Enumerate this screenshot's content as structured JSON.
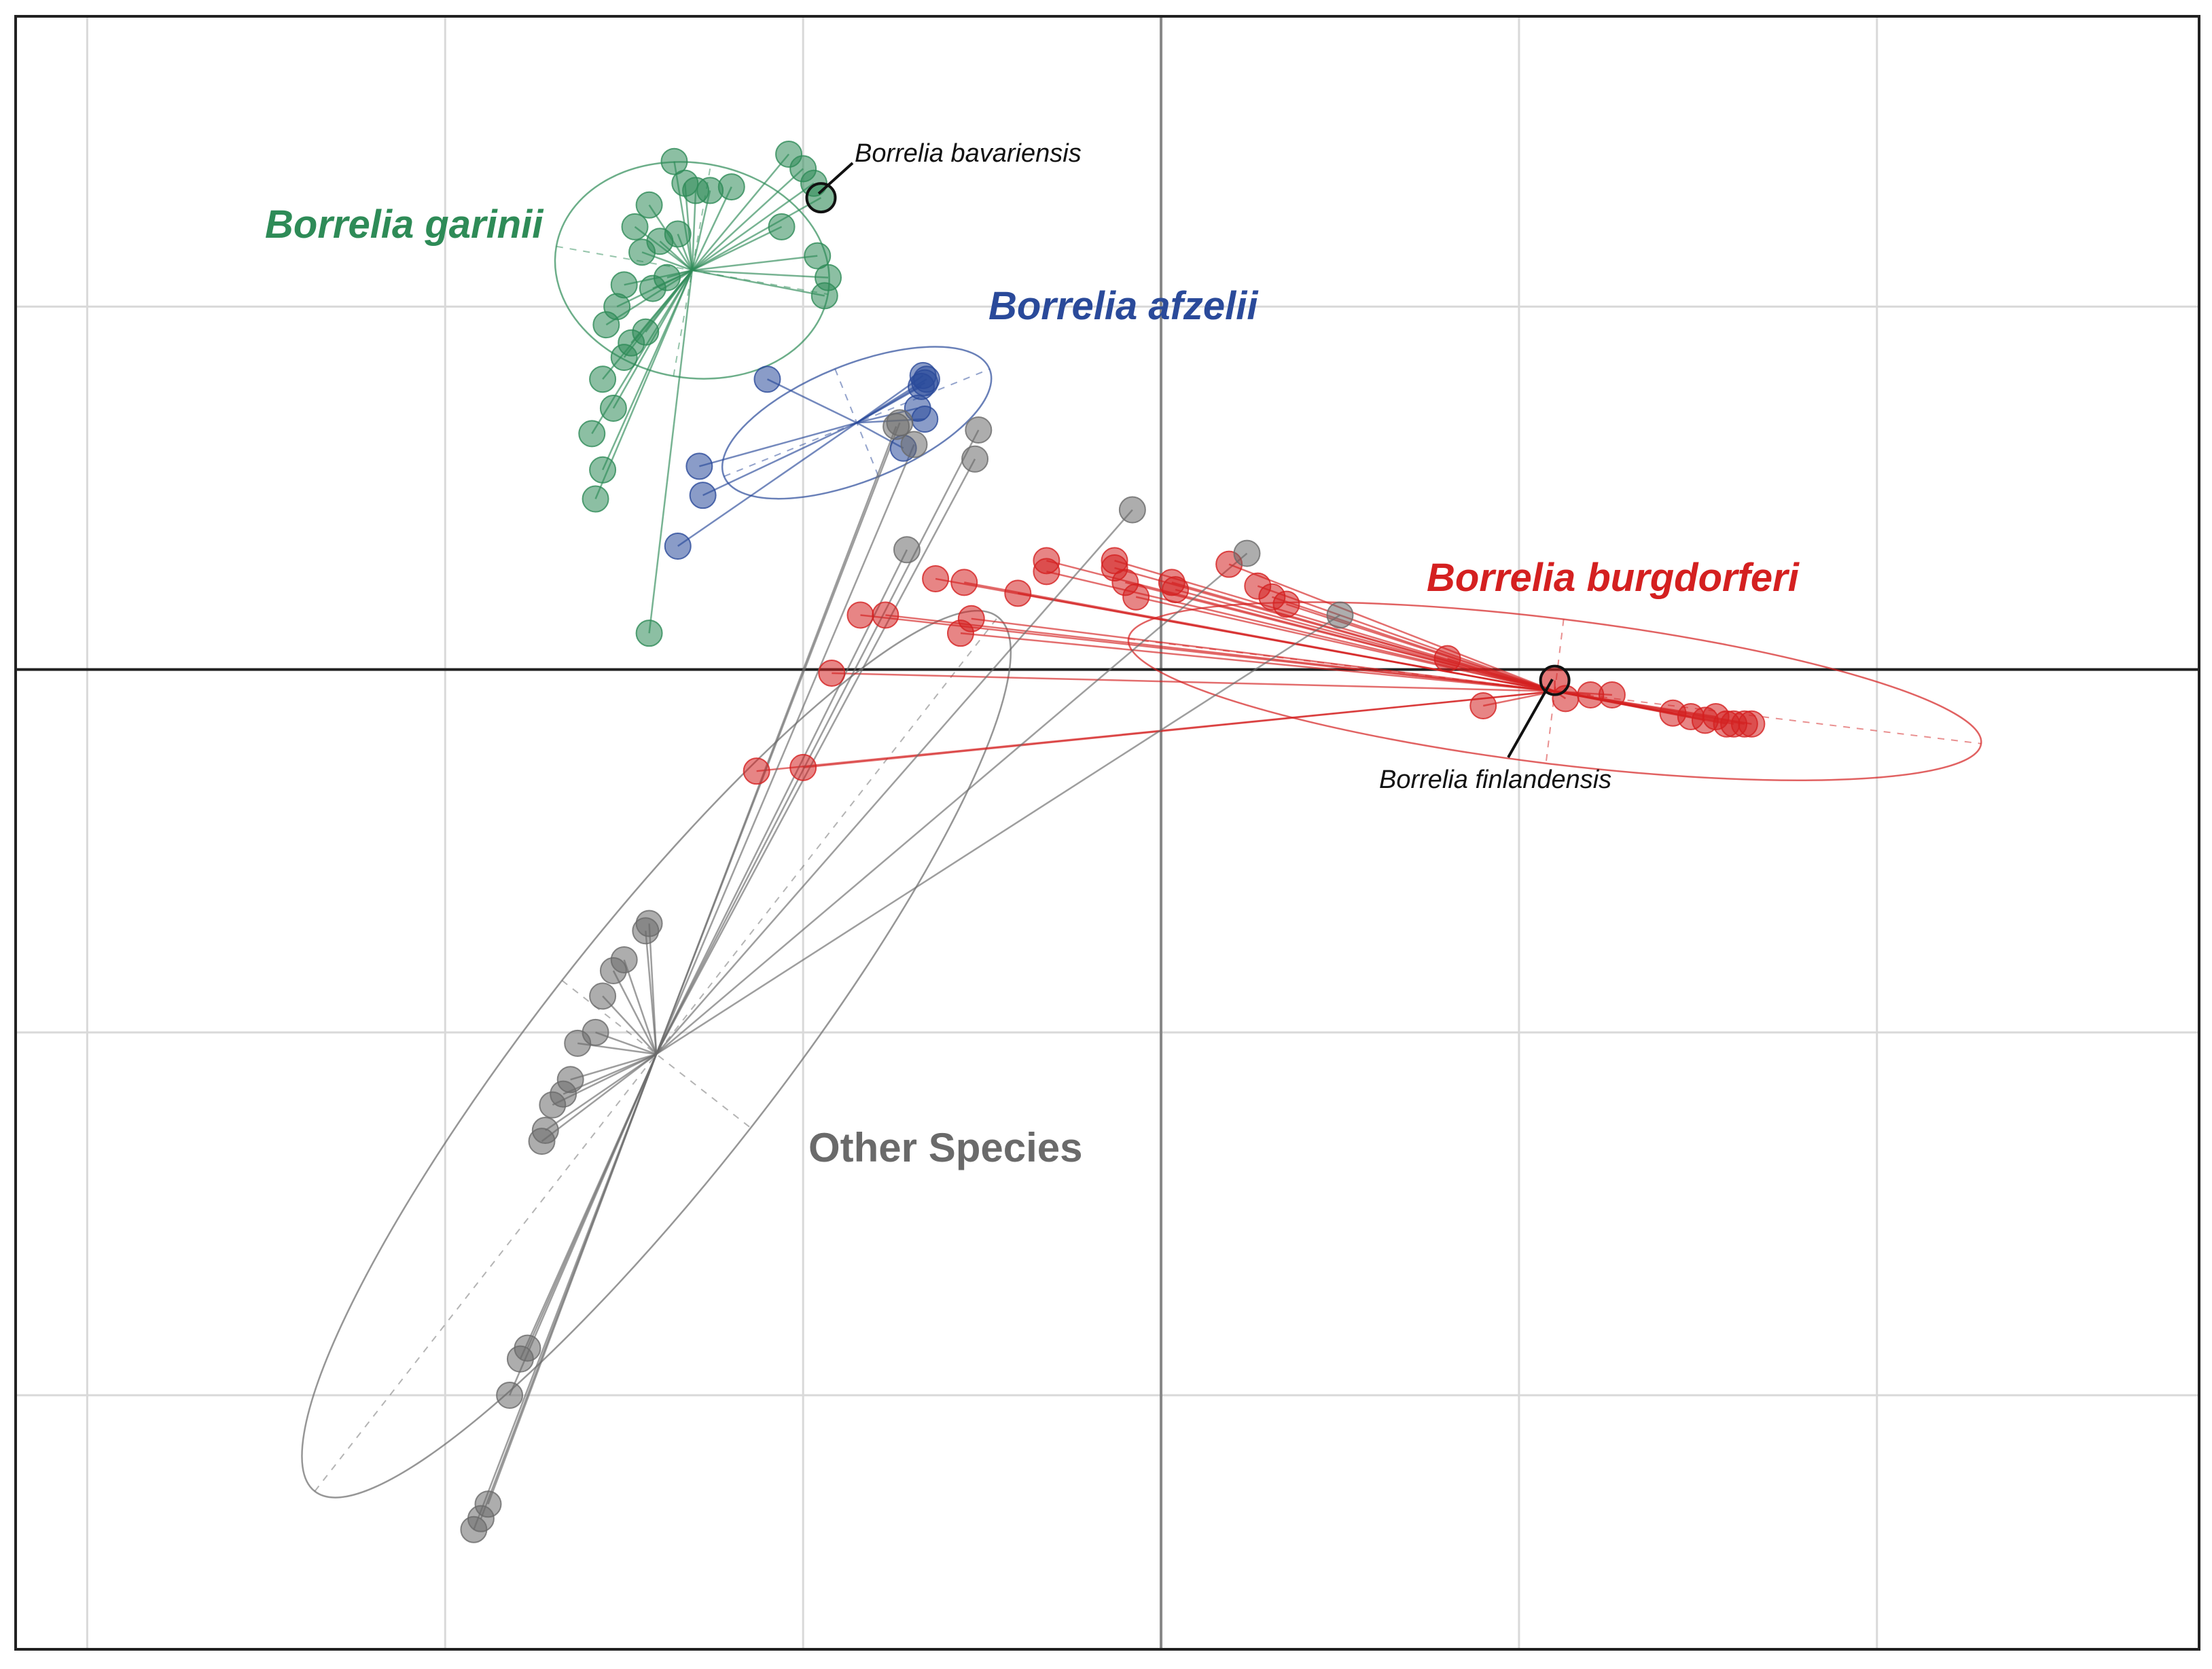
{
  "chart_data": {
    "type": "scatter",
    "title": "",
    "xlabel": "",
    "ylabel": "",
    "xlim": [
      -3.2,
      2.9
    ],
    "ylim": [
      -2.7,
      1.8
    ],
    "grid": true,
    "grid_x": [
      -3,
      -2,
      -1,
      1,
      2
    ],
    "grid_y": [
      1,
      -1,
      -2
    ],
    "axis_lines": {
      "x": 0,
      "y": 0
    },
    "legend": "none",
    "series": [
      {
        "name": "Borrelia garinii",
        "color": "#2e8b57",
        "centroid": [
          -1.31,
          1.1
        ],
        "ellipse": {
          "rx": 0.3,
          "ry": 0.38,
          "angle": -80
        },
        "points": [
          [
            -1.5,
            1.06
          ],
          [
            -1.45,
            1.15
          ],
          [
            -1.47,
            1.22
          ],
          [
            -1.43,
            1.28
          ],
          [
            -1.4,
            1.18
          ],
          [
            -1.38,
            1.08
          ],
          [
            -1.35,
            1.2
          ],
          [
            -1.42,
            1.05
          ],
          [
            -1.52,
            1.0
          ],
          [
            -1.55,
            0.95
          ],
          [
            -1.48,
            0.9
          ],
          [
            -1.44,
            0.93
          ],
          [
            -1.5,
            0.86
          ],
          [
            -1.56,
            0.8
          ],
          [
            -1.53,
            0.72
          ],
          [
            -1.59,
            0.65
          ],
          [
            -1.56,
            0.55
          ],
          [
            -1.58,
            0.47
          ],
          [
            -1.36,
            1.4
          ],
          [
            -1.33,
            1.34
          ],
          [
            -1.3,
            1.32
          ],
          [
            -1.26,
            1.32
          ],
          [
            -1.2,
            1.33
          ],
          [
            -1.04,
            1.42
          ],
          [
            -1.0,
            1.38
          ],
          [
            -0.97,
            1.34
          ],
          [
            -1.06,
            1.22
          ],
          [
            -0.96,
            1.14
          ],
          [
            -0.93,
            1.08
          ],
          [
            -0.94,
            1.03
          ],
          [
            -1.43,
            0.1
          ]
        ],
        "highlight": {
          "label": "Borrelia bavariensis",
          "point": [
            -0.95,
            1.3
          ]
        }
      },
      {
        "name": "Borrelia afzelii",
        "color": "#2a4a9a",
        "centroid": [
          -0.85,
          0.68
        ],
        "ellipse": {
          "rx": 0.4,
          "ry": 0.16,
          "angle": -22
        },
        "points": [
          [
            -0.66,
            0.79
          ],
          [
            -0.665,
            0.81
          ],
          [
            -0.655,
            0.8
          ],
          [
            -0.67,
            0.78
          ],
          [
            -0.68,
            0.72
          ],
          [
            -0.66,
            0.69
          ],
          [
            -0.72,
            0.61
          ],
          [
            -1.1,
            0.8
          ],
          [
            -1.29,
            0.56
          ],
          [
            -1.28,
            0.48
          ],
          [
            -1.35,
            0.34
          ]
        ]
      },
      {
        "name": "Borrelia burgdorferi",
        "color": "#d42020",
        "centroid": [
          1.1,
          -0.06
        ],
        "ellipse": {
          "rx": 1.2,
          "ry": 0.2,
          "angle": 7
        },
        "points": [
          [
            -0.92,
            -0.01
          ],
          [
            -0.84,
            0.15
          ],
          [
            -0.77,
            0.15
          ],
          [
            -0.63,
            0.25
          ],
          [
            -0.55,
            0.24
          ],
          [
            -0.56,
            0.1
          ],
          [
            -0.53,
            0.14
          ],
          [
            -0.4,
            0.21
          ],
          [
            -0.32,
            0.27
          ],
          [
            -0.32,
            0.3
          ],
          [
            -0.13,
            0.28
          ],
          [
            -0.13,
            0.3
          ],
          [
            -0.1,
            0.24
          ],
          [
            -0.07,
            0.2
          ],
          [
            0.03,
            0.24
          ],
          [
            0.04,
            0.22
          ],
          [
            0.19,
            0.29
          ],
          [
            0.27,
            0.23
          ],
          [
            0.31,
            0.2
          ],
          [
            0.35,
            0.18
          ],
          [
            0.8,
            0.03
          ],
          [
            0.9,
            -0.1
          ],
          [
            1.13,
            -0.08
          ],
          [
            1.2,
            -0.07
          ],
          [
            1.26,
            -0.07
          ],
          [
            1.43,
            -0.12
          ],
          [
            1.48,
            -0.13
          ],
          [
            1.52,
            -0.14
          ],
          [
            1.55,
            -0.13
          ],
          [
            1.58,
            -0.15
          ],
          [
            1.6,
            -0.15
          ],
          [
            1.63,
            -0.15
          ],
          [
            1.65,
            -0.15
          ],
          [
            -1.13,
            -0.28
          ],
          [
            -1.0,
            -0.27
          ]
        ],
        "highlight": {
          "label": "Borrelia finlandensis",
          "point": [
            1.1,
            -0.03
          ]
        }
      },
      {
        "name": "Other Species",
        "color": "#6a6a6a",
        "centroid": [
          -1.41,
          -1.06
        ],
        "ellipse": {
          "rx": 1.55,
          "ry": 0.33,
          "angle": -52
        },
        "points": [
          [
            -1.43,
            -0.7
          ],
          [
            -1.44,
            -0.72
          ],
          [
            -1.5,
            -0.8
          ],
          [
            -1.53,
            -0.83
          ],
          [
            -1.56,
            -0.9
          ],
          [
            -1.58,
            -1.0
          ],
          [
            -1.63,
            -1.03
          ],
          [
            -1.65,
            -1.13
          ],
          [
            -1.67,
            -1.17
          ],
          [
            -1.7,
            -1.2
          ],
          [
            -1.72,
            -1.27
          ],
          [
            -1.73,
            -1.3
          ],
          [
            -1.77,
            -1.87
          ],
          [
            -1.79,
            -1.9
          ],
          [
            -1.82,
            -2.0
          ],
          [
            -1.88,
            -2.3
          ],
          [
            -1.9,
            -2.34
          ],
          [
            -1.92,
            -2.37
          ],
          [
            -0.51,
            0.66
          ],
          [
            -0.52,
            0.58
          ],
          [
            -0.69,
            0.62
          ],
          [
            -0.74,
            0.67
          ],
          [
            -0.73,
            0.68
          ],
          [
            -0.71,
            0.33
          ],
          [
            -0.08,
            0.44
          ],
          [
            0.24,
            0.32
          ],
          [
            0.5,
            0.15
          ]
        ]
      }
    ]
  },
  "annotations": {
    "garinii": "Borrelia garinii",
    "afzelii": "Borrelia afzelii",
    "burgdorferi": "Borrelia burgdorferi",
    "other": "Other Species",
    "bavariensis": "Borrelia bavariensis",
    "finlandensis": "Borrelia finlandensis"
  }
}
